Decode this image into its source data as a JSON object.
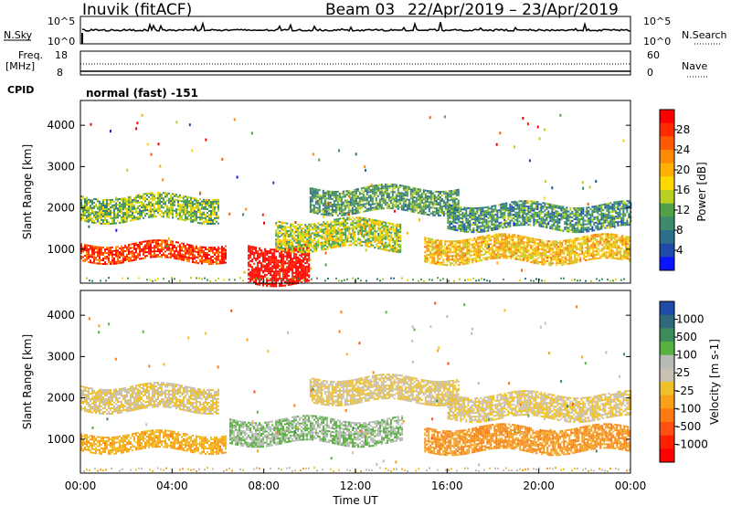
{
  "header": {
    "station": "Inuvik (fitACF)",
    "beam": "Beam 03",
    "dates": "22/Apr/2019 – 23/Apr/2019"
  },
  "strip_nsky": {
    "left_label": "N.Sky",
    "right_label": "N.Search",
    "left_ticks": [
      "10^5",
      "10^0"
    ],
    "right_ticks": [
      "10^5",
      "10^0"
    ]
  },
  "strip_freq": {
    "left_label": "Freq.",
    "left_unit": "[MHz]",
    "right_label": "Nave",
    "left_ticks": [
      "18",
      "8"
    ],
    "right_ticks": [
      "60",
      "0"
    ]
  },
  "cpid": {
    "label": "CPID",
    "mode": "normal (fast) -151"
  },
  "x_axis": {
    "label": "Time UT",
    "ticks": [
      "00:00",
      "04:00",
      "08:00",
      "12:00",
      "16:00",
      "20:00",
      "00:00"
    ]
  },
  "power_panel": {
    "ylabel": "Slant Range [km]",
    "yticks": [
      "1000",
      "2000",
      "3000",
      "4000"
    ],
    "colorbar_label": "Power [dB]",
    "colorbar_ticks": [
      "28",
      "24",
      "20",
      "16",
      "12",
      "8",
      "4"
    ],
    "colorbar_colors": [
      "#ff0000",
      "#ff2a00",
      "#ff5a00",
      "#ff8a00",
      "#ffb000",
      "#ffd800",
      "#b8d020",
      "#50a048",
      "#3c8c6c",
      "#2c6e8c",
      "#1e4aa8",
      "#0a14ff"
    ]
  },
  "velocity_panel": {
    "ylabel": "Slant Range [km]",
    "yticks": [
      "1000",
      "2000",
      "3000",
      "4000"
    ],
    "colorbar_label": "Velocity [m s-1]",
    "colorbar_ticks": [
      "1000",
      "500",
      "100",
      "25",
      "-25",
      "-100",
      "-500",
      "-1000"
    ],
    "colorbar_colors": [
      "#1e4aa8",
      "#2e6a7c",
      "#3c8c5c",
      "#58b040",
      "#b4bcb4",
      "#c8c0b0",
      "#f0c028",
      "#f8a018",
      "#ff7a10",
      "#ff5010",
      "#ff2000",
      "#ff0000"
    ]
  },
  "chart_data": {
    "type": "heatmap",
    "x_range": [
      "00:00",
      "00:00"
    ],
    "y_range_km": [
      180,
      4600
    ],
    "power_bands": [
      {
        "t_start": 0.0,
        "t_end": 6.3,
        "range_km": [
          750,
          1150
        ],
        "power_db": 26
      },
      {
        "t_start": 0.0,
        "t_end": 6.0,
        "range_km": [
          1700,
          2300
        ],
        "power_db": 12
      },
      {
        "t_start": 7.3,
        "t_end": 10.0,
        "range_km": [
          200,
          1100
        ],
        "power_db": 30
      },
      {
        "t_start": 8.5,
        "t_end": 14.0,
        "range_km": [
          1000,
          1700
        ],
        "power_db": 14
      },
      {
        "t_start": 10.0,
        "t_end": 16.5,
        "range_km": [
          1900,
          2500
        ],
        "power_db": 10
      },
      {
        "t_start": 15.0,
        "t_end": 24.0,
        "range_km": [
          700,
          1300
        ],
        "power_db": 18
      },
      {
        "t_start": 16.0,
        "t_end": 24.0,
        "range_km": [
          1500,
          2100
        ],
        "power_db": 9
      }
    ],
    "velocity_bands": [
      {
        "t_start": 0.0,
        "t_end": 6.3,
        "range_km": [
          750,
          1150
        ],
        "velocity": -200
      },
      {
        "t_start": 0.0,
        "t_end": 6.0,
        "range_km": [
          1700,
          2300
        ],
        "velocity": 0
      },
      {
        "t_start": 6.5,
        "t_end": 14.0,
        "range_km": [
          900,
          1500
        ],
        "velocity": 300
      },
      {
        "t_start": 10.0,
        "t_end": 16.5,
        "range_km": [
          1900,
          2500
        ],
        "velocity": 0
      },
      {
        "t_start": 15.0,
        "t_end": 24.0,
        "range_km": [
          700,
          1300
        ],
        "velocity": -300
      },
      {
        "t_start": 16.0,
        "t_end": 24.0,
        "range_km": [
          1500,
          2100
        ],
        "velocity": 0
      }
    ]
  }
}
